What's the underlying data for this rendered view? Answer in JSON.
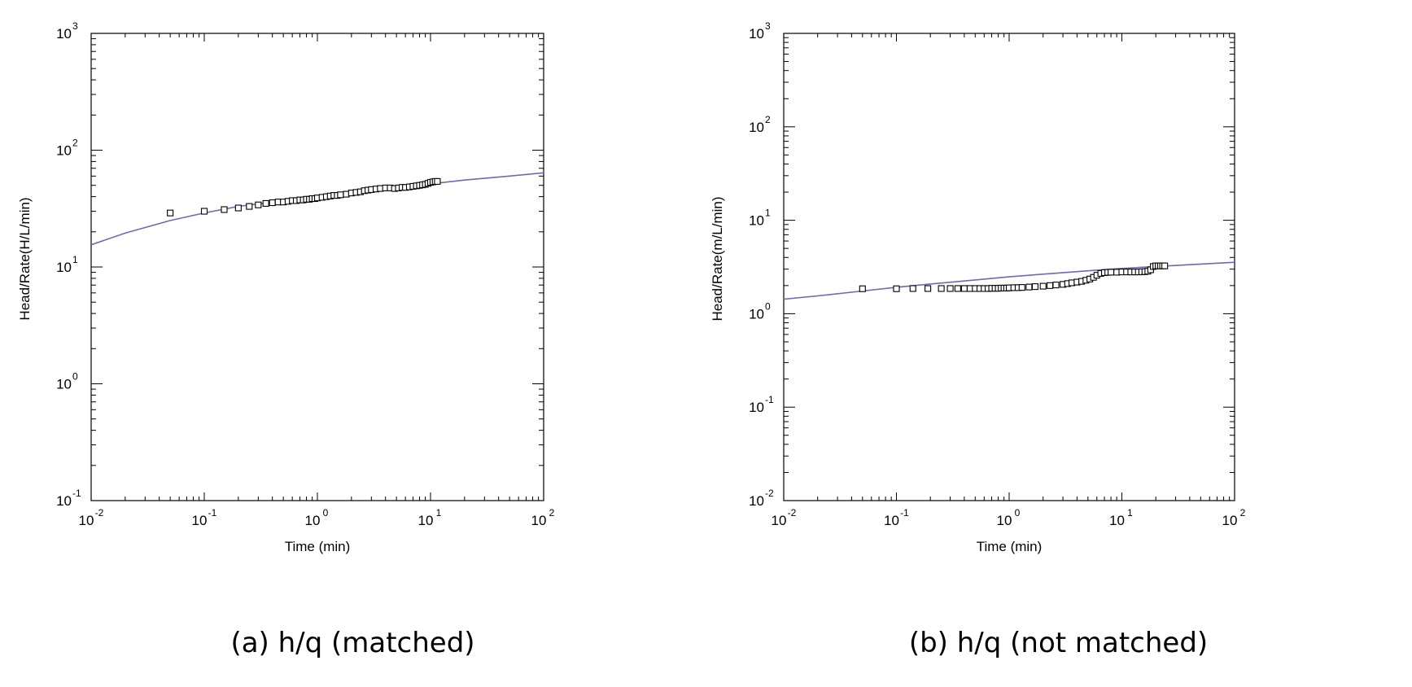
{
  "chart_data": [
    {
      "type": "scatter",
      "xlabel": "Time (min)",
      "ylabel": "Head/Rate(H/L/min)",
      "caption": "(a) h/q (matched)",
      "xscale": "log",
      "yscale": "log",
      "xlim_exp": [
        -2,
        2
      ],
      "ylim_exp": [
        -1,
        3
      ],
      "grid": false,
      "x_tick_exponents": [
        "-2",
        "-1",
        "0",
        "1",
        "2"
      ],
      "y_tick_exponents": [
        "-1",
        "0",
        "1",
        "2",
        "3"
      ],
      "tick_base": "10",
      "series": [
        {
          "kind": "observed",
          "marker": "square-open",
          "x": [
            0.05,
            0.1,
            0.15,
            0.2,
            0.25,
            0.3,
            0.35,
            0.4,
            0.45,
            0.5,
            0.55,
            0.6,
            0.65,
            0.7,
            0.75,
            0.8,
            0.85,
            0.9,
            0.95,
            1.0,
            1.1,
            1.2,
            1.3,
            1.4,
            1.5,
            1.6,
            1.8,
            2.0,
            2.2,
            2.4,
            2.6,
            2.8,
            3.0,
            3.3,
            3.6,
            4.0,
            4.4,
            4.8,
            5.2,
            5.6,
            6.0,
            6.5,
            7.0,
            7.5,
            8.0,
            8.5,
            9.0,
            9.5,
            10.0,
            10.5,
            11.0,
            11.5
          ],
          "y": [
            29,
            30,
            31,
            32,
            33,
            34,
            35,
            35.5,
            36,
            36,
            36.5,
            37,
            37,
            37.5,
            37.5,
            38,
            38,
            38.5,
            38.5,
            39,
            39.5,
            40,
            40.5,
            41,
            41,
            41.5,
            42,
            43,
            43.5,
            44,
            45,
            45.5,
            46,
            46.5,
            47,
            47.5,
            47.5,
            47,
            47.5,
            48,
            48,
            48.5,
            49,
            49.5,
            50,
            50.5,
            51,
            52,
            53,
            53.5,
            54,
            54
          ]
        },
        {
          "kind": "type-curve",
          "color": "#6b6bb8",
          "x": [
            0.01,
            0.02,
            0.05,
            0.1,
            0.2,
            0.5,
            1,
            2,
            5,
            10,
            20,
            50,
            100
          ],
          "y": [
            15.5,
            19.5,
            25,
            29,
            33,
            37,
            40,
            43.5,
            48,
            51.5,
            55.5,
            60,
            64
          ]
        }
      ]
    },
    {
      "type": "scatter",
      "xlabel": "Time (min)",
      "ylabel": "Head/Rate(m/L/min)",
      "caption": "(b) h/q (not matched)",
      "xscale": "log",
      "yscale": "log",
      "xlim_exp": [
        -2,
        2
      ],
      "ylim_exp": [
        -2,
        3
      ],
      "grid": false,
      "x_tick_exponents": [
        "-2",
        "-1",
        "0",
        "1",
        "2"
      ],
      "y_tick_exponents": [
        "-2",
        "-1",
        "0",
        "1",
        "2",
        "3"
      ],
      "tick_base": "10",
      "series": [
        {
          "kind": "observed",
          "marker": "square-open",
          "x": [
            0.05,
            0.1,
            0.14,
            0.19,
            0.25,
            0.3,
            0.35,
            0.4,
            0.45,
            0.5,
            0.55,
            0.6,
            0.65,
            0.7,
            0.75,
            0.8,
            0.85,
            0.9,
            0.95,
            1.0,
            1.1,
            1.2,
            1.3,
            1.5,
            1.7,
            2.0,
            2.3,
            2.6,
            3.0,
            3.3,
            3.6,
            4.0,
            4.4,
            4.8,
            5.2,
            5.6,
            6.0,
            6.5,
            7.0,
            7.5,
            8.0,
            9.0,
            10.0,
            11.0,
            12.0,
            13.0,
            14.0,
            15.0,
            16.0,
            17.0,
            18.0,
            19.0,
            20.0,
            21.0,
            22.0,
            23.0,
            24.0
          ],
          "y": [
            1.85,
            1.85,
            1.86,
            1.86,
            1.86,
            1.86,
            1.86,
            1.86,
            1.86,
            1.86,
            1.86,
            1.86,
            1.86,
            1.87,
            1.87,
            1.87,
            1.88,
            1.88,
            1.88,
            1.89,
            1.9,
            1.9,
            1.91,
            1.93,
            1.95,
            1.97,
            2.0,
            2.03,
            2.06,
            2.1,
            2.14,
            2.18,
            2.22,
            2.28,
            2.35,
            2.45,
            2.58,
            2.7,
            2.75,
            2.77,
            2.78,
            2.78,
            2.8,
            2.8,
            2.8,
            2.8,
            2.8,
            2.81,
            2.82,
            2.85,
            2.95,
            3.2,
            3.25,
            3.25,
            3.25,
            3.25,
            3.25
          ]
        },
        {
          "kind": "type-curve",
          "color": "#6b6bb8",
          "x": [
            0.01,
            0.02,
            0.05,
            0.1,
            0.2,
            0.5,
            1,
            2,
            5,
            10,
            20,
            50,
            100
          ],
          "y": [
            1.43,
            1.55,
            1.75,
            1.92,
            2.08,
            2.3,
            2.48,
            2.65,
            2.88,
            3.05,
            3.2,
            3.4,
            3.55
          ]
        }
      ]
    }
  ]
}
